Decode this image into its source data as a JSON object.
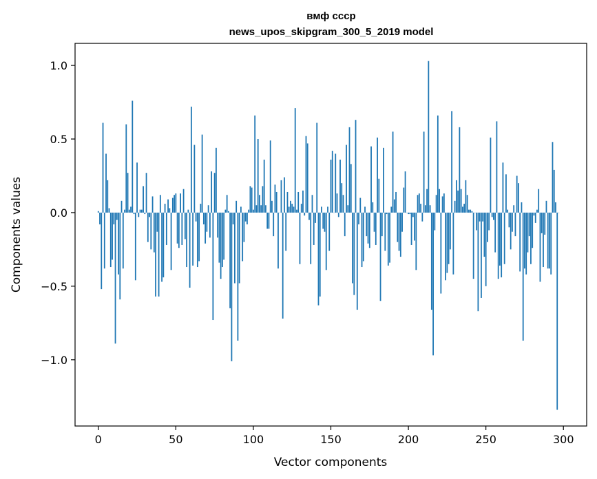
{
  "chart_data": {
    "type": "bar",
    "title": "вмф ссср",
    "subtitle": "news_upos_skipgram_300_5_2019 model",
    "xlabel": "Vector components",
    "ylabel": "Components values",
    "xlim": [
      -15,
      315
    ],
    "ylim": [
      -1.45,
      1.15
    ],
    "x_ticks": [
      0,
      50,
      100,
      150,
      200,
      250,
      300
    ],
    "y_ticks": [
      -1.0,
      -0.5,
      0.0,
      0.5,
      1.0
    ],
    "y_tick_labels": [
      "−1.0",
      "−0.5",
      "0.0",
      "0.5",
      "1.0"
    ],
    "grid": false,
    "legend": "none",
    "bar_color": "#1f77b4",
    "values": [
      0.01,
      -0.08,
      -0.52,
      0.61,
      -0.38,
      0.4,
      0.22,
      0.03,
      -0.37,
      -0.32,
      -0.08,
      -0.89,
      -0.05,
      -0.42,
      -0.59,
      0.08,
      -0.38,
      0.02,
      0.6,
      0.27,
      0.02,
      0.04,
      0.76,
      -0.01,
      -0.46,
      0.34,
      -0.03,
      0.02,
      0.02,
      0.18,
      -0.01,
      0.27,
      -0.2,
      -0.03,
      -0.25,
      0.11,
      -0.27,
      -0.57,
      -0.13,
      -0.57,
      0.12,
      -0.47,
      -0.44,
      0.06,
      -0.22,
      0.09,
      0.03,
      -0.39,
      0.1,
      0.12,
      0.13,
      -0.21,
      -0.24,
      0.13,
      -0.22,
      0.16,
      -0.18,
      -0.37,
      0.02,
      -0.51,
      0.72,
      -0.36,
      0.46,
      -0.06,
      -0.37,
      -0.33,
      0.06,
      0.53,
      -0.08,
      -0.21,
      -0.13,
      0.05,
      -0.17,
      0.28,
      -0.73,
      0.27,
      0.44,
      -0.17,
      -0.34,
      -0.45,
      -0.37,
      -0.32,
      0.02,
      0.12,
      0.01,
      -0.65,
      -1.01,
      -0.08,
      -0.48,
      0.08,
      -0.87,
      -0.48,
      0.04,
      -0.33,
      -0.2,
      -0.06,
      -0.08,
      0.02,
      0.18,
      0.17,
      0.02,
      0.66,
      0.05,
      0.5,
      0.12,
      0.05,
      0.18,
      0.36,
      0.05,
      -0.11,
      -0.11,
      0.49,
      0.08,
      -0.16,
      0.19,
      0.14,
      -0.38,
      0.0,
      0.22,
      -0.72,
      0.24,
      -0.26,
      0.14,
      0.04,
      0.08,
      0.06,
      0.04,
      0.71,
      0.02,
      0.14,
      -0.35,
      0.06,
      0.15,
      -0.02,
      0.52,
      0.47,
      -0.05,
      -0.35,
      0.12,
      -0.22,
      -0.07,
      0.61,
      -0.63,
      -0.57,
      0.04,
      -0.11,
      -0.13,
      -0.39,
      0.04,
      -0.26,
      0.36,
      0.42,
      0.0,
      0.4,
      0.13,
      -0.03,
      0.36,
      0.2,
      0.12,
      -0.16,
      0.46,
      0.05,
      0.58,
      0.33,
      -0.48,
      -0.56,
      0.63,
      -0.66,
      -0.08,
      0.1,
      -0.37,
      -0.33,
      0.04,
      -0.16,
      -0.21,
      -0.24,
      0.45,
      0.07,
      -0.13,
      -0.22,
      0.51,
      0.23,
      -0.6,
      -0.16,
      0.44,
      -0.26,
      -0.01,
      -0.36,
      -0.34,
      0.04,
      0.55,
      0.09,
      0.14,
      -0.2,
      -0.26,
      -0.3,
      -0.13,
      0.17,
      0.28,
      0.0,
      -0.01,
      -0.01,
      -0.22,
      -0.03,
      -0.19,
      -0.39,
      0.12,
      0.13,
      0.06,
      -0.06,
      0.55,
      0.05,
      0.16,
      1.03,
      0.05,
      -0.66,
      -0.97,
      -0.12,
      0.12,
      0.66,
      0.16,
      -0.55,
      0.11,
      0.13,
      -0.46,
      -0.41,
      -0.35,
      -0.25,
      0.69,
      -0.42,
      0.08,
      0.22,
      0.15,
      0.58,
      0.16,
      0.04,
      0.06,
      0.22,
      0.12,
      0.02,
      0.02,
      0.01,
      -0.45,
      0.0,
      -0.12,
      -0.67,
      -0.06,
      -0.58,
      -0.06,
      -0.3,
      -0.5,
      -0.2,
      -0.12,
      0.51,
      -0.03,
      -0.05,
      -0.27,
      0.62,
      -0.45,
      -0.36,
      -0.44,
      0.34,
      -0.35,
      0.26,
      0.02,
      -0.1,
      -0.25,
      -0.13,
      0.05,
      -0.16,
      0.25,
      0.2,
      -0.4,
      0.07,
      -0.87,
      -0.38,
      -0.42,
      -0.27,
      -0.16,
      -0.35,
      -0.24,
      -0.02,
      -0.07,
      0.02,
      0.16,
      -0.47,
      -0.14,
      -0.37,
      -0.15,
      0.08,
      -0.38,
      -0.38,
      -0.42,
      0.48,
      0.29,
      0.07,
      -1.34,
      0.0
    ]
  }
}
